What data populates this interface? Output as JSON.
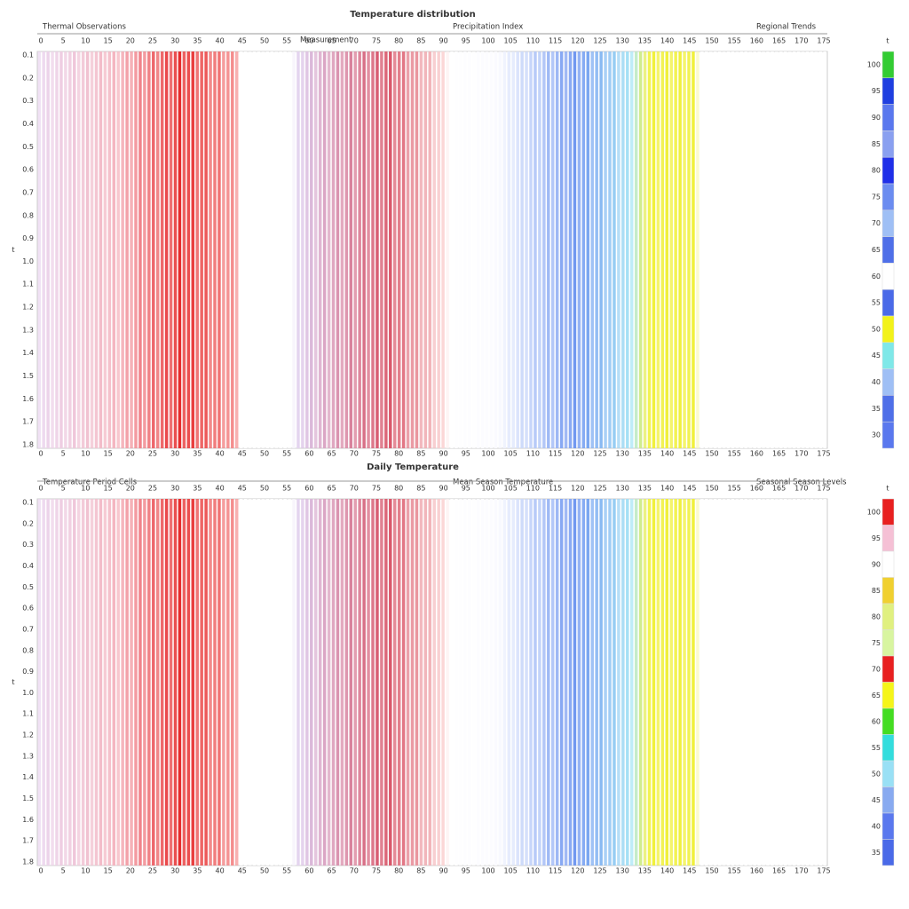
{
  "panels": [
    {
      "title": "Temperature distribution",
      "sections": [
        "Thermal Observations",
        "Precipitation Index",
        "Regional Trends"
      ],
      "subsection": "Measurement",
      "axis_label": "t",
      "y_labels": [
        "0.1",
        "0.2",
        "0.3",
        "0.4",
        "0.5",
        "0.6",
        "0.7",
        "0.8",
        "0.9",
        "1.0",
        "1.1",
        "1.2",
        "1.3",
        "1.4",
        "1.5",
        "1.6",
        "1.7",
        "1.8"
      ],
      "x_labels": [
        "0",
        "5",
        "10",
        "15",
        "20",
        "25",
        "30",
        "35",
        "40",
        "45",
        "50",
        "55",
        "60",
        "65",
        "70",
        "75",
        "80",
        "85",
        "90",
        "95",
        "100",
        "105",
        "110",
        "115",
        "120",
        "125",
        "130",
        "135",
        "140",
        "145",
        "150",
        "155",
        "160",
        "165",
        "170",
        "175"
      ],
      "legend": {
        "title": "t",
        "colors": [
          "#33cc33",
          "#1f3fe0",
          "#5a78ee",
          "#8aa0f0",
          "#1f2fe8",
          "#6b8cf0",
          "#9fbff5",
          "#4f6fe8",
          "#ffffff",
          "#4a6ae8",
          "#f2f21a",
          "#7fe8e8",
          "#9fbff5",
          "#4f6fe8",
          "#5a78ee"
        ],
        "labels": [
          "100",
          "95",
          "90",
          "85",
          "80",
          "75",
          "70",
          "65",
          "60",
          "55",
          "50",
          "45",
          "40",
          "35",
          "30"
        ]
      }
    },
    {
      "title": "Daily Temperature",
      "sections": [
        "Temperature Period Cells",
        "Mean Season Temperature",
        "Seasonal Season Levels"
      ],
      "axis_label": "t",
      "y_labels": [
        "0.1",
        "0.2",
        "0.3",
        "0.4",
        "0.5",
        "0.6",
        "0.7",
        "0.8",
        "0.9",
        "1.0",
        "1.1",
        "1.2",
        "1.3",
        "1.4",
        "1.5",
        "1.6",
        "1.7",
        "1.8"
      ],
      "x_labels": [
        "0",
        "5",
        "10",
        "15",
        "20",
        "25",
        "30",
        "35",
        "40",
        "45",
        "50",
        "55",
        "60",
        "65",
        "70",
        "75",
        "80",
        "85",
        "90",
        "95",
        "100",
        "105",
        "110",
        "115",
        "120",
        "125",
        "130",
        "135",
        "140",
        "145",
        "150",
        "155",
        "160",
        "165",
        "170",
        "175"
      ],
      "legend": {
        "title": "t",
        "colors": [
          "#e82020",
          "#f5c0d5",
          "#ffffff",
          "#f0d030",
          "#e0f080",
          "#d8f5a0",
          "#e82020",
          "#f5f51a",
          "#44dd22",
          "#33dddd",
          "#99e0f5",
          "#88aaf0",
          "#5a78ee",
          "#4a6ae8"
        ],
        "labels": [
          "100",
          "95",
          "90",
          "85",
          "80",
          "75",
          "70",
          "65",
          "60",
          "55",
          "50",
          "45",
          "40",
          "35"
        ]
      }
    }
  ]
}
